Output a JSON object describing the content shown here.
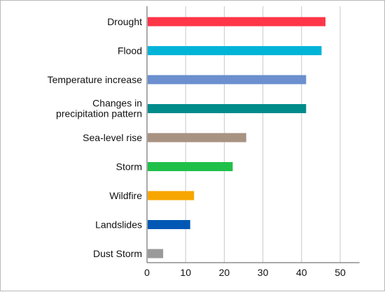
{
  "chart_data": {
    "type": "bar",
    "orientation": "horizontal",
    "title": "",
    "xlabel": "",
    "ylabel": "",
    "categories": [
      [
        "Drought"
      ],
      [
        "Flood"
      ],
      [
        "Temperature increase"
      ],
      [
        "Changes in",
        "precipitation pattern"
      ],
      [
        "Sea-level rise"
      ],
      [
        "Storm"
      ],
      [
        "Wildfire"
      ],
      [
        "Landslides"
      ],
      [
        "Dust Storm"
      ]
    ],
    "values": [
      46,
      45,
      41,
      41,
      25.5,
      22,
      12,
      11,
      4
    ],
    "colors": [
      "#ff3548",
      "#00b4d8",
      "#6b8fcf",
      "#008b8b",
      "#a89282",
      "#1fc04a",
      "#f7a600",
      "#0058b4",
      "#9a9a9a"
    ],
    "xlim": [
      0,
      55
    ],
    "xticks": [
      0,
      10,
      20,
      30,
      40,
      50
    ],
    "grid": true,
    "legend": "none"
  }
}
